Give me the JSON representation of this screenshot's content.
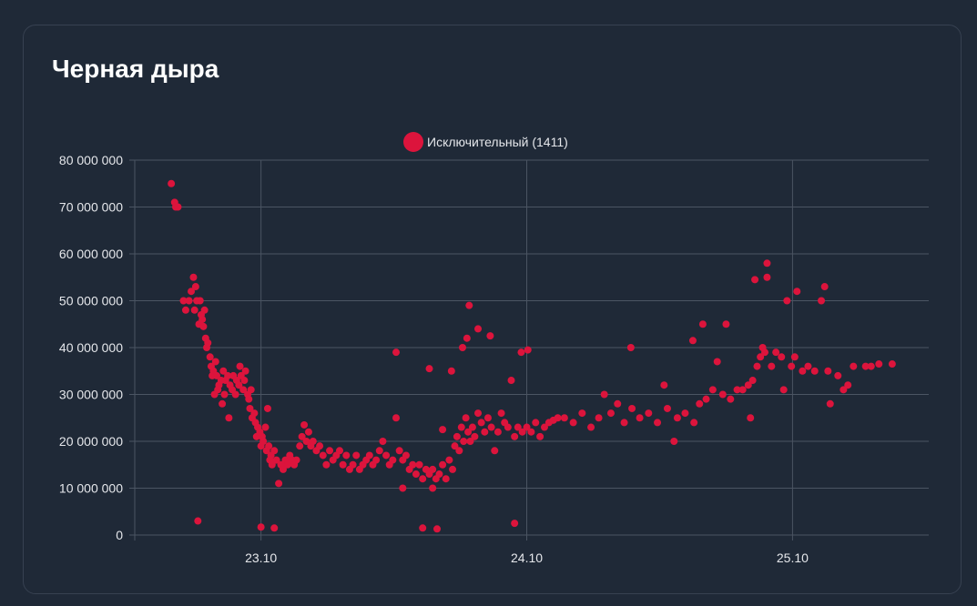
{
  "card": {
    "title": "Черная дыра"
  },
  "chart_data": {
    "type": "scatter",
    "title": "",
    "xlabel": "",
    "ylabel": "",
    "x_unit": "hours since 23.10 00:00",
    "y_unit_multiplier": 1000000,
    "xlim": [
      -11.4,
      60.3
    ],
    "ylim": [
      0,
      80
    ],
    "grid": true,
    "legend_position": "top-center",
    "x_ticks": [
      {
        "value": 0,
        "label": "23.10"
      },
      {
        "value": 24,
        "label": "24.10"
      },
      {
        "value": 48,
        "label": "25.10"
      }
    ],
    "y_ticks": [
      {
        "value": 0,
        "label": "0"
      },
      {
        "value": 10,
        "label": "10 000 000"
      },
      {
        "value": 20,
        "label": "20 000 000"
      },
      {
        "value": 30,
        "label": "30 000 000"
      },
      {
        "value": 40,
        "label": "40 000 000"
      },
      {
        "value": 50,
        "label": "50 000 000"
      },
      {
        "value": 60,
        "label": "60 000 000"
      },
      {
        "value": 70,
        "label": "70 000 000"
      },
      {
        "value": 80,
        "label": "80 000 000"
      }
    ],
    "series": [
      {
        "name": "Исключительный (1411)",
        "color": "#dc143c",
        "points": [
          [
            -8.1,
            75
          ],
          [
            -7.8,
            71
          ],
          [
            -7.7,
            70
          ],
          [
            -7.5,
            70
          ],
          [
            -7,
            50
          ],
          [
            -6.8,
            48
          ],
          [
            -6.5,
            50
          ],
          [
            -6.3,
            52
          ],
          [
            -6.1,
            55
          ],
          [
            -6,
            48
          ],
          [
            -5.9,
            53
          ],
          [
            -5.8,
            50
          ],
          [
            -5.6,
            45
          ],
          [
            -5.5,
            50
          ],
          [
            -5.4,
            47
          ],
          [
            -5.3,
            46
          ],
          [
            -5.2,
            44.5
          ],
          [
            -5.1,
            48
          ],
          [
            -5,
            42
          ],
          [
            -4.9,
            40
          ],
          [
            -4.8,
            41
          ],
          [
            -5.7,
            3
          ],
          [
            -4.6,
            38
          ],
          [
            -4.5,
            36
          ],
          [
            -4.4,
            34
          ],
          [
            -4.3,
            35
          ],
          [
            -4.2,
            30
          ],
          [
            -4.1,
            37
          ],
          [
            -4,
            34
          ],
          [
            -3.9,
            31
          ],
          [
            -3.8,
            32
          ],
          [
            -3.6,
            33
          ],
          [
            -3.5,
            28
          ],
          [
            -3.4,
            35
          ],
          [
            -3.3,
            30
          ],
          [
            -3.2,
            33
          ],
          [
            -3,
            34
          ],
          [
            -2.9,
            25
          ],
          [
            -2.8,
            32
          ],
          [
            -2.6,
            31
          ],
          [
            -2.5,
            34
          ],
          [
            -2.3,
            30
          ],
          [
            -2.2,
            33
          ],
          [
            -2,
            32
          ],
          [
            -1.9,
            36
          ],
          [
            -1.8,
            34
          ],
          [
            -1.6,
            31
          ],
          [
            -1.5,
            33
          ],
          [
            -1.4,
            35
          ],
          [
            -1.2,
            30
          ],
          [
            -1.1,
            29
          ],
          [
            -1,
            27
          ],
          [
            -0.9,
            31
          ],
          [
            -0.8,
            25
          ],
          [
            -0.6,
            26
          ],
          [
            -0.5,
            24
          ],
          [
            -0.4,
            21
          ],
          [
            -0.3,
            23
          ],
          [
            -0.1,
            22
          ],
          [
            0,
            19
          ],
          [
            0.1,
            21
          ],
          [
            0.2,
            20
          ],
          [
            0.4,
            23
          ],
          [
            0.5,
            18
          ],
          [
            0.6,
            27
          ],
          [
            0.7,
            19
          ],
          [
            0.8,
            16
          ],
          [
            0.9,
            17
          ],
          [
            1,
            15
          ],
          [
            1.2,
            18
          ],
          [
            1.4,
            16
          ],
          [
            1.6,
            11
          ],
          [
            1.8,
            15
          ],
          [
            2,
            14
          ],
          [
            2.2,
            16
          ],
          [
            2.4,
            15
          ],
          [
            2.6,
            17
          ],
          [
            2.8,
            16
          ],
          [
            3,
            15
          ],
          [
            3.2,
            16
          ],
          [
            0,
            1.7
          ],
          [
            1.2,
            1.5
          ],
          [
            3.5,
            19
          ],
          [
            3.7,
            21
          ],
          [
            3.9,
            23.5
          ],
          [
            4.1,
            20
          ],
          [
            4.3,
            22
          ],
          [
            4.5,
            19
          ],
          [
            4.7,
            20
          ],
          [
            5,
            18
          ],
          [
            5.3,
            19
          ],
          [
            5.6,
            17
          ],
          [
            5.9,
            15
          ],
          [
            6.2,
            18
          ],
          [
            6.5,
            16
          ],
          [
            6.8,
            17
          ],
          [
            7.1,
            18
          ],
          [
            7.4,
            15
          ],
          [
            7.7,
            17
          ],
          [
            8,
            14
          ],
          [
            8.3,
            15
          ],
          [
            8.6,
            17
          ],
          [
            8.9,
            14
          ],
          [
            9.2,
            15
          ],
          [
            9.5,
            16
          ],
          [
            9.8,
            17
          ],
          [
            10.1,
            15
          ],
          [
            10.4,
            16
          ],
          [
            10.7,
            18
          ],
          [
            11,
            20
          ],
          [
            11.3,
            17
          ],
          [
            11.6,
            15
          ],
          [
            11.9,
            16
          ],
          [
            12.2,
            25
          ],
          [
            12.2,
            39
          ],
          [
            12.5,
            18
          ],
          [
            12.8,
            10
          ],
          [
            12.8,
            16
          ],
          [
            13.1,
            17
          ],
          [
            13.4,
            14
          ],
          [
            13.7,
            15
          ],
          [
            14,
            13
          ],
          [
            14.3,
            15
          ],
          [
            14.6,
            12
          ],
          [
            14.6,
            1.5
          ],
          [
            14.9,
            14
          ],
          [
            15.2,
            13
          ],
          [
            15.2,
            35.5
          ],
          [
            15.5,
            10
          ],
          [
            15.5,
            14
          ],
          [
            15.8,
            12
          ],
          [
            15.9,
            1.3
          ],
          [
            16.1,
            13
          ],
          [
            16.4,
            15
          ],
          [
            16.4,
            22.5
          ],
          [
            16.7,
            12
          ],
          [
            17,
            16
          ],
          [
            17.2,
            35
          ],
          [
            17.3,
            14
          ],
          [
            17.5,
            19
          ],
          [
            17.7,
            21
          ],
          [
            17.9,
            18
          ],
          [
            18.1,
            23
          ],
          [
            18.2,
            40
          ],
          [
            18.3,
            20
          ],
          [
            18.5,
            25
          ],
          [
            18.6,
            42
          ],
          [
            18.7,
            22
          ],
          [
            18.8,
            49
          ],
          [
            18.9,
            20
          ],
          [
            19.1,
            23
          ],
          [
            19.3,
            21
          ],
          [
            19.6,
            44
          ],
          [
            19.6,
            26
          ],
          [
            19.9,
            24
          ],
          [
            20.2,
            22
          ],
          [
            20.5,
            25
          ],
          [
            20.7,
            42.5
          ],
          [
            20.8,
            23
          ],
          [
            21.1,
            18
          ],
          [
            21.4,
            22
          ],
          [
            21.7,
            26
          ],
          [
            22,
            24
          ],
          [
            22.3,
            23
          ],
          [
            22.6,
            33
          ],
          [
            22.9,
            2.5
          ],
          [
            22.9,
            21
          ],
          [
            23.2,
            23
          ],
          [
            23.5,
            39
          ],
          [
            23.6,
            22
          ],
          [
            24,
            23
          ],
          [
            24.1,
            39.5
          ],
          [
            24.4,
            22
          ],
          [
            24.8,
            24
          ],
          [
            25.2,
            21
          ],
          [
            25.6,
            23
          ],
          [
            26,
            24
          ],
          [
            26.4,
            24.5
          ],
          [
            26.8,
            25
          ],
          [
            27.4,
            25
          ],
          [
            28.2,
            24
          ],
          [
            29,
            26
          ],
          [
            29.8,
            23
          ],
          [
            30.5,
            25
          ],
          [
            31,
            30
          ],
          [
            31.6,
            26
          ],
          [
            32.2,
            28
          ],
          [
            32.8,
            24
          ],
          [
            33.4,
            40
          ],
          [
            33.5,
            27
          ],
          [
            34.2,
            25
          ],
          [
            35,
            26
          ],
          [
            35.8,
            24
          ],
          [
            36.4,
            32
          ],
          [
            36.7,
            27
          ],
          [
            37.3,
            20
          ],
          [
            37.6,
            25
          ],
          [
            38.3,
            26
          ],
          [
            39,
            41.5
          ],
          [
            39.1,
            24
          ],
          [
            39.6,
            28
          ],
          [
            39.9,
            45
          ],
          [
            40.2,
            29
          ],
          [
            40.8,
            31
          ],
          [
            41.2,
            37
          ],
          [
            41.7,
            30
          ],
          [
            42,
            45
          ],
          [
            42.4,
            29
          ],
          [
            43,
            31
          ],
          [
            43.5,
            31
          ],
          [
            44,
            32
          ],
          [
            44.2,
            25
          ],
          [
            44.4,
            33
          ],
          [
            44.6,
            54.5
          ],
          [
            44.8,
            36
          ],
          [
            45.1,
            38
          ],
          [
            45.3,
            40
          ],
          [
            45.5,
            39
          ],
          [
            45.7,
            58
          ],
          [
            45.7,
            55
          ],
          [
            46.1,
            36
          ],
          [
            46.5,
            39
          ],
          [
            47,
            38
          ],
          [
            47.2,
            31
          ],
          [
            47.5,
            50
          ],
          [
            47.9,
            36
          ],
          [
            48.2,
            38
          ],
          [
            48.4,
            52
          ],
          [
            48.9,
            35
          ],
          [
            49.4,
            36
          ],
          [
            50,
            35
          ],
          [
            50.6,
            50
          ],
          [
            50.9,
            53
          ],
          [
            51.2,
            35
          ],
          [
            51.4,
            28
          ],
          [
            52.1,
            34
          ],
          [
            52.6,
            31
          ],
          [
            53,
            32
          ],
          [
            53.5,
            36
          ],
          [
            54.6,
            36
          ],
          [
            55.1,
            36
          ],
          [
            55.8,
            36.5
          ],
          [
            57,
            36.5
          ]
        ]
      }
    ]
  }
}
